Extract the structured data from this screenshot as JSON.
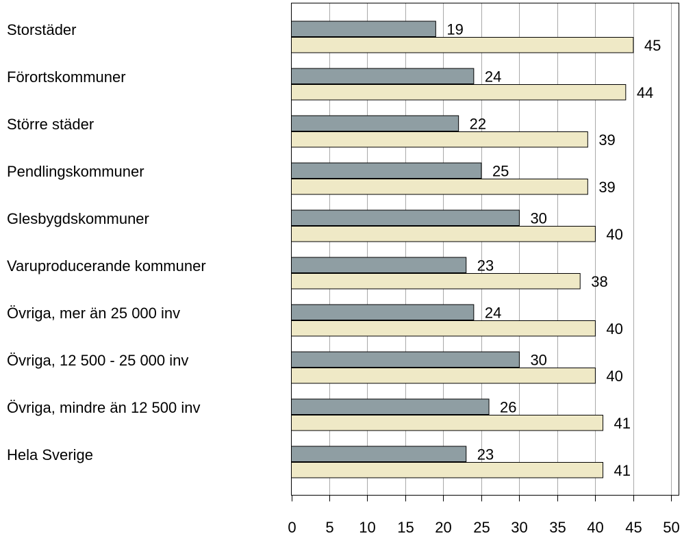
{
  "chart_data": {
    "type": "bar",
    "orientation": "horizontal",
    "categories": [
      "Storstäder",
      "Förortskommuner",
      "Större städer",
      "Pendlingskommuner",
      "Glesbygdskommuner",
      "Varuproducerande kommuner",
      "Övriga, mer än 25 000 inv",
      "Övriga, 12 500 - 25 000 inv",
      "Övriga, mindre än 12 500 inv",
      "Hela Sverige"
    ],
    "series": [
      {
        "values": [
          19,
          24,
          22,
          25,
          30,
          23,
          24,
          30,
          26,
          23
        ],
        "color": "#8f9ea3"
      },
      {
        "values": [
          45,
          44,
          39,
          39,
          40,
          38,
          40,
          40,
          41,
          41
        ],
        "color": "#efe9c6"
      }
    ],
    "xlim": [
      0,
      51
    ],
    "xticks": [
      0,
      5,
      10,
      15,
      20,
      25,
      30,
      35,
      40,
      45,
      50
    ],
    "grid": true,
    "legend": "none"
  }
}
